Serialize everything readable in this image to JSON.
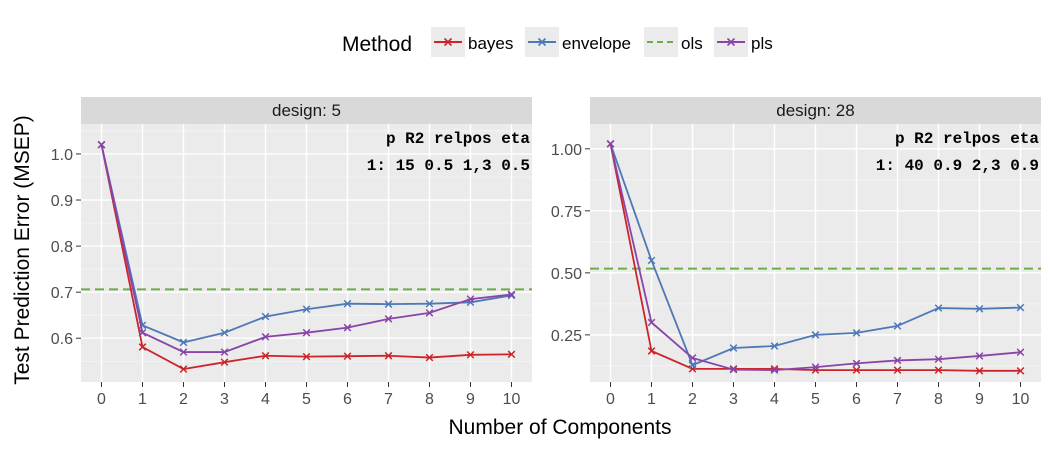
{
  "chart_data": {
    "type": "line",
    "legend": {
      "title": "Method",
      "placement": "top",
      "entries": [
        {
          "name": "bayes",
          "color": "#cc2529"
        },
        {
          "name": "envelope",
          "color": "#4e79b7"
        },
        {
          "name": "ols",
          "color": "#6aad45"
        },
        {
          "name": "pls",
          "color": "#8a44a8"
        }
      ]
    },
    "xlabel": "Number of Components",
    "ylabel": "Test Prediction Error (MSEP)",
    "x": [
      0,
      1,
      2,
      3,
      4,
      5,
      6,
      7,
      8,
      9,
      10
    ],
    "xlim": [
      -0.5,
      10.5
    ],
    "grid": true,
    "panels": [
      {
        "strip": "design: 5",
        "annotation": {
          "header": [
            "p",
            "R2",
            "relpos",
            "eta"
          ],
          "row_label": "1:",
          "row": [
            "15",
            "0.5",
            "1,3",
            "0.5"
          ]
        },
        "ylim": [
          0.505,
          1.065
        ],
        "yticks": [
          0.6,
          0.7,
          0.8,
          0.9,
          1.0
        ],
        "ytick_labels": [
          "0.6",
          "0.7",
          "0.8",
          "0.9",
          "1.0"
        ],
        "ols_value": 0.706,
        "series": [
          {
            "name": "bayes",
            "values": [
              1.02,
              0.581,
              0.533,
              0.548,
              0.562,
              0.56,
              0.561,
              0.562,
              0.558,
              0.564,
              0.565
            ]
          },
          {
            "name": "envelope",
            "values": [
              1.02,
              0.628,
              0.591,
              0.612,
              0.647,
              0.663,
              0.675,
              0.674,
              0.675,
              0.678,
              0.693
            ]
          },
          {
            "name": "pls",
            "values": [
              1.02,
              0.612,
              0.57,
              0.57,
              0.603,
              0.612,
              0.623,
              0.642,
              0.655,
              0.685,
              0.695
            ]
          }
        ]
      },
      {
        "strip": "design: 28",
        "annotation": {
          "header": [
            "p",
            "R2",
            "relpos",
            "eta"
          ],
          "row_label": "1:",
          "row": [
            "40",
            "0.9",
            "2,3",
            "0.9"
          ]
        },
        "ylim": [
          0.06,
          1.1
        ],
        "yticks": [
          0.25,
          0.5,
          0.75,
          1.0
        ],
        "ytick_labels": [
          "0.25",
          "0.50",
          "0.75",
          "1.00"
        ],
        "ols_value": 0.517,
        "series": [
          {
            "name": "bayes",
            "values": [
              1.02,
              0.185,
              0.113,
              0.113,
              0.113,
              0.108,
              0.108,
              0.108,
              0.108,
              0.105,
              0.105
            ]
          },
          {
            "name": "envelope",
            "values": [
              1.02,
              0.55,
              0.128,
              0.197,
              0.205,
              0.25,
              0.258,
              0.286,
              0.358,
              0.355,
              0.36
            ]
          },
          {
            "name": "pls",
            "values": [
              1.02,
              0.3,
              0.157,
              0.11,
              0.108,
              0.12,
              0.135,
              0.147,
              0.152,
              0.165,
              0.18
            ]
          }
        ]
      }
    ]
  }
}
